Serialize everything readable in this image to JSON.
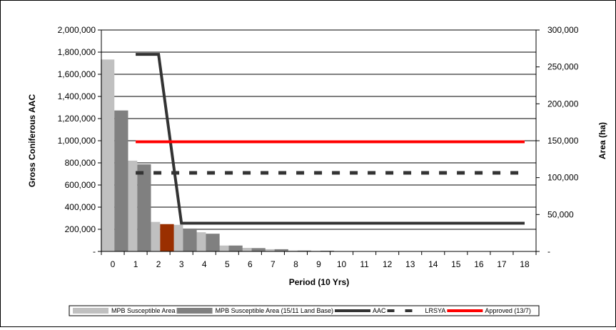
{
  "chart_data": {
    "type": "bar",
    "title": "",
    "xlabel": "Period (10  Yrs)",
    "ylabel": "Gross Coniferous AAC",
    "y2label": "Area (ha)",
    "categories": [
      "0",
      "1",
      "2",
      "3",
      "4",
      "5",
      "6",
      "7",
      "8",
      "9",
      "10",
      "11",
      "12",
      "13",
      "14",
      "15",
      "16",
      "17",
      "18"
    ],
    "ylim": [
      0,
      2000000
    ],
    "y2lim": [
      0,
      300000
    ],
    "yticks": [
      "-",
      "200,000",
      "400,000",
      "600,000",
      "800,000",
      "1,000,000",
      "1,200,000",
      "1,400,000",
      "1,600,000",
      "1,800,000",
      "2,000,000"
    ],
    "y2ticks": [
      "-",
      "50,000",
      "100,000",
      "150,000",
      "200,000",
      "250,000",
      "300,000"
    ],
    "grid": "horizontal",
    "legend_position": "bottom",
    "series": [
      {
        "name": "MPB Susceptible Area",
        "kind": "bar",
        "axis": "right",
        "color": "#c0c0c0",
        "values": [
          260000,
          123000,
          40000,
          36000,
          26000,
          8000,
          4800,
          3000,
          1200,
          800,
          300,
          200,
          150,
          100,
          100,
          80,
          60,
          50,
          40
        ]
      },
      {
        "name": "MPB Susceptible Area (15/11 Land Base)",
        "kind": "bar",
        "axis": "right",
        "color": "#808080",
        "highlight": {
          "index": 2,
          "color": "#9a2f00"
        },
        "values": [
          191000,
          118000,
          37000,
          31000,
          24000,
          8000,
          4500,
          3000,
          1200,
          1000,
          300,
          200,
          150,
          100,
          100,
          80,
          60,
          50,
          40
        ]
      },
      {
        "name": "AAC",
        "kind": "line",
        "axis": "left",
        "style": "solid",
        "color": "#333333",
        "x": [
          1,
          2,
          3,
          18
        ],
        "values": [
          1780000,
          1780000,
          255000,
          255000
        ]
      },
      {
        "name": "LRSYA",
        "kind": "line",
        "axis": "left",
        "style": "dashed",
        "color": "#333333",
        "x": [
          1,
          18
        ],
        "values": [
          710000,
          710000
        ]
      },
      {
        "name": "Approved (13/7)",
        "kind": "line",
        "axis": "left",
        "style": "solid",
        "color": "#ff0000",
        "x": [
          1,
          18
        ],
        "values": [
          990000,
          990000
        ]
      }
    ]
  }
}
